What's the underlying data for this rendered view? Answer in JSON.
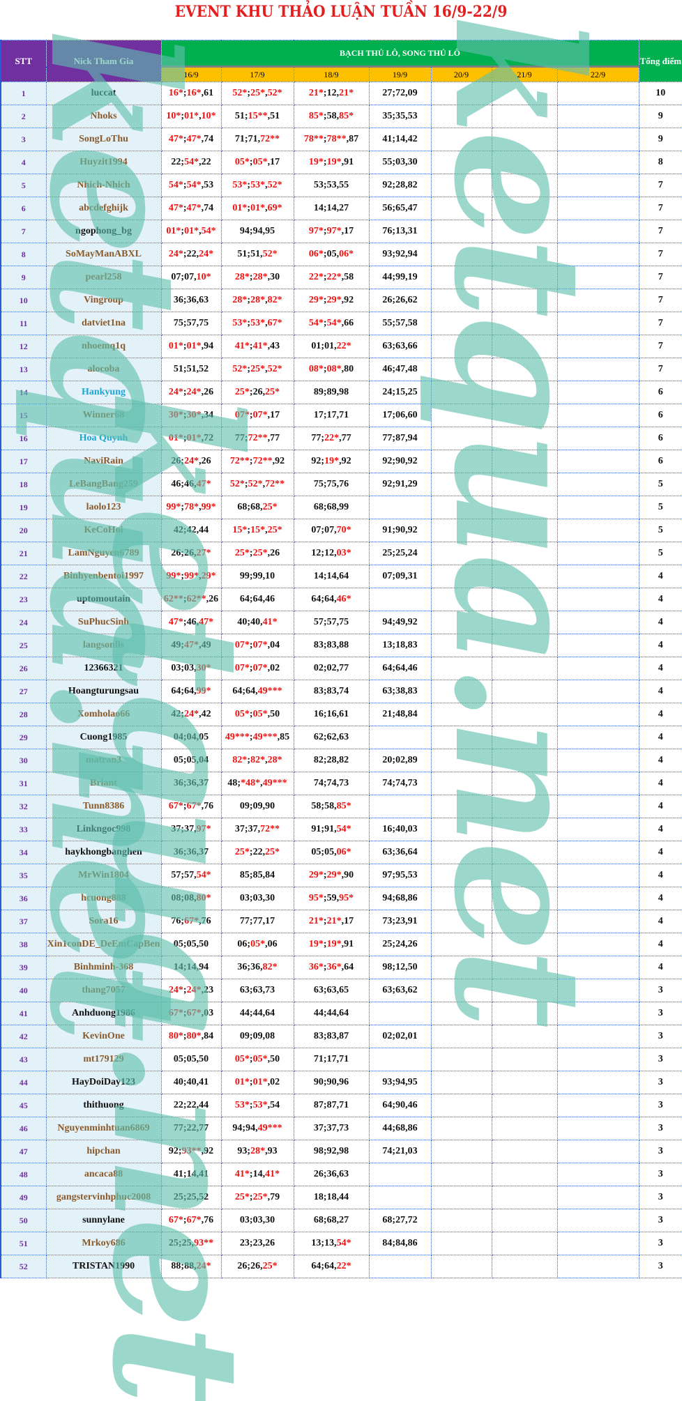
{
  "title": "EVENT KHU THẢO LUẬN TUẦN 16/9-22/9",
  "header": {
    "stt": "STT",
    "nick": "Nick Tham Gia",
    "group": "BẠCH THỦ LÔ, SONG THỦ LÔ",
    "total": "Tổng điểm",
    "days": [
      "16/9",
      "17/9",
      "18/9",
      "19/9",
      "20/9",
      "21/9",
      "22/9"
    ]
  },
  "watermark": "ketqua.net",
  "colors": {
    "header_purple": "#7030a0",
    "header_green": "#00b050",
    "header_yellow": "#ffc000",
    "title_red": "#e41e1e",
    "hit_red": "#f01010",
    "brown": "#8b5a2b",
    "black": "#111111",
    "cyan": "#1ba6d6"
  },
  "rows": [
    {
      "stt": "1",
      "nick": "luccat",
      "color": "black",
      "days": [
        "16*;16*,61",
        "52*;25*,52*",
        "21*;12,21*",
        "27;72,09",
        "",
        "",
        ""
      ],
      "total": "10"
    },
    {
      "stt": "2",
      "nick": "Nhoks",
      "color": "brown",
      "days": [
        "10*;01*,10*",
        "51;15**,51",
        "85*;58,85*",
        "35;35,53",
        "",
        "",
        ""
      ],
      "total": "9"
    },
    {
      "stt": "3",
      "nick": "SongLoThu",
      "color": "brown",
      "days": [
        "47*;47*,74",
        "71;71,72**",
        "78**;78**,87",
        "41;14,42",
        "",
        "",
        ""
      ],
      "total": "9"
    },
    {
      "stt": "4",
      "nick": "Huyzit1994",
      "color": "brown",
      "days": [
        "22;54*,22",
        "05*;05*,17",
        "19*;19*,91",
        "55;03,30",
        "",
        "",
        ""
      ],
      "total": "8"
    },
    {
      "stt": "5",
      "nick": "Nhich-Nhich",
      "color": "brown",
      "days": [
        "54*;54*,53",
        "53*;53*,52*",
        "53;53,55",
        "92;28,82",
        "",
        "",
        ""
      ],
      "total": "7"
    },
    {
      "stt": "6",
      "nick": "abcdefghijk",
      "color": "brown",
      "days": [
        "47*;47*,74",
        "01*;01*,69*",
        "14;14,27",
        "56;65,47",
        "",
        "",
        ""
      ],
      "total": "7"
    },
    {
      "stt": "7",
      "nick": "ngophong_bg",
      "color": "black",
      "days": [
        "01*;01*,54*",
        "94;94,95",
        "97*;97*,17",
        "76;13,31",
        "",
        "",
        ""
      ],
      "total": "7"
    },
    {
      "stt": "8",
      "nick": "SoMayManABXL",
      "color": "brown",
      "days": [
        "24*;22,24*",
        "51;51,52*",
        "06*;05,06*",
        "93;92,94",
        "",
        "",
        ""
      ],
      "total": "7"
    },
    {
      "stt": "9",
      "nick": "pearl258",
      "color": "brown",
      "days": [
        "07;07,10*",
        "28*;28*,30",
        "22*;22*,58",
        "44;99,19",
        "",
        "",
        ""
      ],
      "total": "7"
    },
    {
      "stt": "10",
      "nick": "Vingroup",
      "color": "brown",
      "days": [
        "36;36,63",
        "28*;28*,82*",
        "29*;29*,92",
        "26;26,62",
        "",
        "",
        ""
      ],
      "total": "7"
    },
    {
      "stt": "11",
      "nick": "datviet1na",
      "color": "brown",
      "days": [
        "75;57,75",
        "53*;53*,67*",
        "54*;54*,66",
        "55;57,58",
        "",
        "",
        ""
      ],
      "total": "7"
    },
    {
      "stt": "12",
      "nick": "nhoemq1q",
      "color": "brown",
      "days": [
        "01*;01*,94",
        "41*;41*,43",
        "01;01,22*",
        "63;63,66",
        "",
        "",
        ""
      ],
      "total": "7"
    },
    {
      "stt": "13",
      "nick": "alocoba",
      "color": "brown",
      "days": [
        "51;51,52",
        "52*;25*,52*",
        "08*;08*,80",
        "46;47,48",
        "",
        "",
        ""
      ],
      "total": "7"
    },
    {
      "stt": "14",
      "nick": "Hankyung",
      "color": "cyan",
      "days": [
        "24*;24*,26",
        "25*;26,25*",
        "89;89,98",
        "24;15,25",
        "",
        "",
        ""
      ],
      "total": "6"
    },
    {
      "stt": "15",
      "nick": "Winner68",
      "color": "brown",
      "days": [
        "30*;30*,34",
        "07*;07*,17",
        "17;17,71",
        "17;06,60",
        "",
        "",
        ""
      ],
      "total": "6"
    },
    {
      "stt": "16",
      "nick": "Hoa Quynh",
      "color": "cyan",
      "days": [
        "01*;01*,72",
        "77;72**,77",
        "77;22*,77",
        "77;87,94",
        "",
        "",
        ""
      ],
      "total": "6"
    },
    {
      "stt": "17",
      "nick": "NaviRain",
      "color": "brown",
      "days": [
        "26;24*,26",
        "72**;72**,92",
        "92;19*,92",
        "92;90,92",
        "",
        "",
        ""
      ],
      "total": "6"
    },
    {
      "stt": "18",
      "nick": "LeBangBang259",
      "color": "brown",
      "days": [
        "46;46,47*",
        "52*;52*,72**",
        "75;75,76",
        "92;91,29",
        "",
        "",
        ""
      ],
      "total": "5"
    },
    {
      "stt": "19",
      "nick": "laolo123",
      "color": "brown",
      "days": [
        "99*;78*,99*",
        "68;68,25*",
        "68;68,99",
        "",
        "",
        "",
        ""
      ],
      "total": "5"
    },
    {
      "stt": "20",
      "nick": "KeCoHoi",
      "color": "brown",
      "days": [
        "42;42,44",
        "15*;15*,25*",
        "07;07,70*",
        "91;90,92",
        "",
        "",
        ""
      ],
      "total": "5"
    },
    {
      "stt": "21",
      "nick": "LamNguyen6789",
      "color": "brown",
      "days": [
        "26;26,27*",
        "25*;25*,26",
        "12;12,03*",
        "25;25,24",
        "",
        "",
        ""
      ],
      "total": "5"
    },
    {
      "stt": "22",
      "nick": "Binhyenbentoi1997",
      "color": "brown",
      "days": [
        "99*;99*,29*",
        "99;99,10",
        "14;14,64",
        "07;09,31",
        "",
        "",
        ""
      ],
      "total": "4"
    },
    {
      "stt": "23",
      "nick": "uptomoutain",
      "color": "black",
      "days": [
        "62**;62**,26",
        "64;64,46",
        "64;64,46*",
        "",
        "",
        "",
        ""
      ],
      "total": "4"
    },
    {
      "stt": "24",
      "nick": "SuPhucSinh",
      "color": "brown",
      "days": [
        "47*;46,47*",
        "40;40,41*",
        "57;57,75",
        "94;49,92",
        "",
        "",
        ""
      ],
      "total": "4"
    },
    {
      "stt": "25",
      "nick": "langsonlls",
      "color": "brown",
      "days": [
        "49;47*,49",
        "07*;07*,04",
        "83;83,88",
        "13;18,83",
        "",
        "",
        ""
      ],
      "total": "4"
    },
    {
      "stt": "26",
      "nick": "12366321",
      "color": "black",
      "days": [
        "03;03,30*",
        "07*;07*,02",
        "02;02,77",
        "64;64,46",
        "",
        "",
        ""
      ],
      "total": "4"
    },
    {
      "stt": "27",
      "nick": "Hoangturungsau",
      "color": "black",
      "days": [
        "64;64,99*",
        "64;64,49***",
        "83;83,74",
        "63;38,83",
        "",
        "",
        ""
      ],
      "total": "4"
    },
    {
      "stt": "28",
      "nick": "Xomholao66",
      "color": "brown",
      "days": [
        "42;24*,42",
        "05*;05*,50",
        "16;16,61",
        "21;48,84",
        "",
        "",
        ""
      ],
      "total": "4"
    },
    {
      "stt": "29",
      "nick": "Cuong1985",
      "color": "black",
      "days": [
        "04;04,05",
        "49***;49***,85",
        "62;62,63",
        "",
        "",
        "",
        ""
      ],
      "total": "4"
    },
    {
      "stt": "30",
      "nick": "matran3",
      "color": "brown",
      "days": [
        "05;05,04",
        "82*;82*,28*",
        "82;28,82",
        "20;02,89",
        "",
        "",
        ""
      ],
      "total": "4"
    },
    {
      "stt": "31",
      "nick": "Briant",
      "color": "brown",
      "days": [
        "36;36,37",
        "48;*48*,49***",
        "74;74,73",
        "74;74,73",
        "",
        "",
        ""
      ],
      "total": "4"
    },
    {
      "stt": "32",
      "nick": "Tunn8386",
      "color": "brown",
      "days": [
        "67*;67*,76",
        "09;09,90",
        "58;58,85*",
        "",
        "",
        "",
        ""
      ],
      "total": "4"
    },
    {
      "stt": "33",
      "nick": "Linkngoc998",
      "color": "black",
      "days": [
        "37;37,97*",
        "37;37,72**",
        "91;91,54*",
        "16;40,03",
        "",
        "",
        ""
      ],
      "total": "4"
    },
    {
      "stt": "34",
      "nick": "haykhongbanghen",
      "color": "black",
      "days": [
        "36;36,37",
        "25*;22,25*",
        "05;05,06*",
        "63;36,64",
        "",
        "",
        ""
      ],
      "total": "4"
    },
    {
      "stt": "35",
      "nick": "MrWin1804",
      "color": "brown",
      "days": [
        "57;57,54*",
        "85;85,84",
        "29*;29*,90",
        "97;95,53",
        "",
        "",
        ""
      ],
      "total": "4"
    },
    {
      "stt": "36",
      "nick": "hcuong888",
      "color": "brown",
      "days": [
        "08;08,80*",
        "03;03,30",
        "95*;59,95*",
        "94;68,86",
        "",
        "",
        ""
      ],
      "total": "4"
    },
    {
      "stt": "37",
      "nick": "Sora16",
      "color": "brown",
      "days": [
        "76;67*,76",
        "77;77,17",
        "21*;21*,17",
        "73;23,91",
        "",
        "",
        ""
      ],
      "total": "4"
    },
    {
      "stt": "38",
      "nick": "Xin1conDE_DeEmCapBen",
      "color": "brown",
      "days": [
        "05;05,50",
        "06;05*,06",
        "19*;19*,91",
        "25;24,26",
        "",
        "",
        ""
      ],
      "total": "4"
    },
    {
      "stt": "39",
      "nick": "Binhminh-368",
      "color": "brown",
      "days": [
        "14;14,94",
        "36;36,82*",
        "36*;36*,64",
        "98;12,50",
        "",
        "",
        ""
      ],
      "total": "4"
    },
    {
      "stt": "40",
      "nick": "thang7057",
      "color": "brown",
      "days": [
        "24*;24*,23",
        "63;63,73",
        "63;63,65",
        "63;63,62",
        "",
        "",
        ""
      ],
      "total": "3"
    },
    {
      "stt": "41",
      "nick": "Anhduong1986",
      "color": "black",
      "days": [
        "67*;67*,03",
        "44;44,64",
        "44;44,64",
        "",
        "",
        "",
        ""
      ],
      "total": "3"
    },
    {
      "stt": "42",
      "nick": "KevinOne",
      "color": "brown",
      "days": [
        "80*;80*,84",
        "09;09,08",
        "83;83,87",
        "02;02,01",
        "",
        "",
        ""
      ],
      "total": "3"
    },
    {
      "stt": "43",
      "nick": "mt179129",
      "color": "brown",
      "days": [
        "05;05,50",
        "05*;05*,50",
        "71;17,71",
        "",
        "",
        "",
        ""
      ],
      "total": "3"
    },
    {
      "stt": "44",
      "nick": "HayDoiDay123",
      "color": "black",
      "days": [
        "40;40,41",
        "01*;01*,02",
        "90;90,96",
        "93;94,95",
        "",
        "",
        ""
      ],
      "total": "3"
    },
    {
      "stt": "45",
      "nick": "thithuong",
      "color": "black",
      "days": [
        "22;22,44",
        "53*;53*,54",
        "87;87,71",
        "64;90,46",
        "",
        "",
        ""
      ],
      "total": "3"
    },
    {
      "stt": "46",
      "nick": "Nguyenminhtuan6869",
      "color": "brown",
      "days": [
        "77;22,77",
        "94;94,49***",
        "37;37,73",
        "44;68,86",
        "",
        "",
        ""
      ],
      "total": "3"
    },
    {
      "stt": "47",
      "nick": "hipchan",
      "color": "brown",
      "days": [
        "92;93**,92",
        "93;28*,93",
        "98;92,98",
        "74;21,03",
        "",
        "",
        ""
      ],
      "total": "3"
    },
    {
      "stt": "48",
      "nick": "ancaca88",
      "color": "brown",
      "days": [
        "41;14,41",
        "41*;14,41*",
        "26;36,63",
        "",
        "",
        "",
        ""
      ],
      "total": "3"
    },
    {
      "stt": "49",
      "nick": "gangstervinhphuc2008",
      "color": "brown",
      "days": [
        "25;25,52",
        "25*;25*,79",
        "18;18,44",
        "",
        "",
        "",
        ""
      ],
      "total": "3"
    },
    {
      "stt": "50",
      "nick": "sunnylane",
      "color": "black",
      "days": [
        "67*;67*,76",
        "03;03,30",
        "68;68,27",
        "68;27,72",
        "",
        "",
        ""
      ],
      "total": "3"
    },
    {
      "stt": "51",
      "nick": "Mrkoy686",
      "color": "brown",
      "days": [
        "25;25,93**",
        "23;23,26",
        "13;13,54*",
        "84;84,86",
        "",
        "",
        ""
      ],
      "total": "3"
    },
    {
      "stt": "52",
      "nick": "TRISTAN1990",
      "color": "black",
      "days": [
        "88;88,24*",
        "26;26,25*",
        "64;64,22*",
        "",
        "",
        "",
        ""
      ],
      "total": "3"
    }
  ]
}
